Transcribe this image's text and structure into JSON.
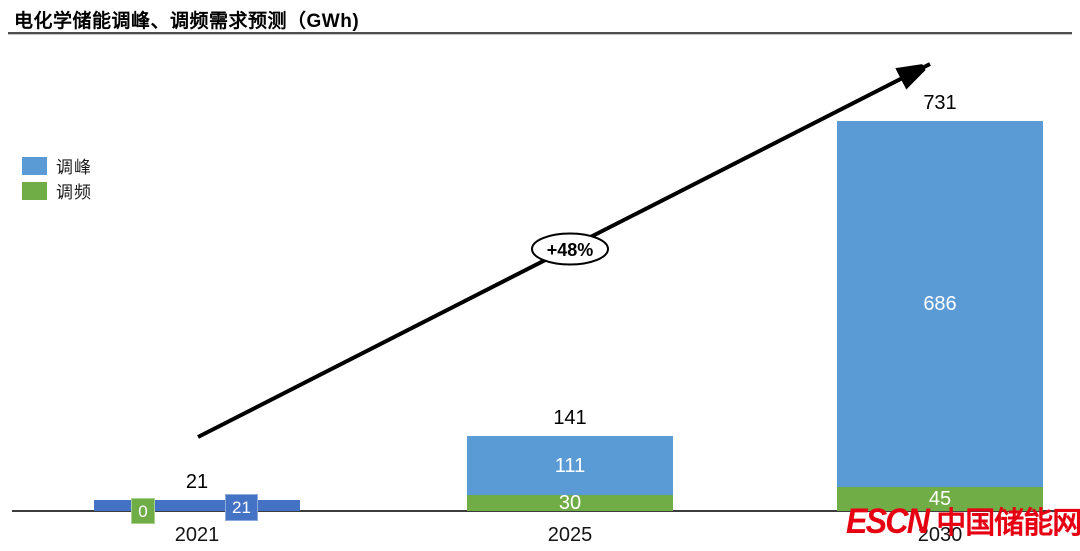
{
  "title": "电化学储能调峰、调频需求预测（GWh)",
  "legend": {
    "items": [
      {
        "label": "调峰",
        "color": "#5b9bd5"
      },
      {
        "label": "调频",
        "color": "#70ad47"
      }
    ]
  },
  "colors": {
    "peak": "#5b9bd5",
    "peak_2021": "#4472c4",
    "freq": "#70ad47",
    "axis": "#3c3c3c",
    "arrow": "#000000",
    "watermark_red": "#e60012"
  },
  "watermark": {
    "latin": "ESCN",
    "cjk": "中国储能网"
  },
  "chart_data": {
    "type": "bar",
    "stacked": true,
    "title": "电化学储能调峰、调频需求预测（GWh)",
    "categories": [
      "2021",
      "2025",
      "2030"
    ],
    "series": [
      {
        "name": "调峰",
        "color": "#5b9bd5",
        "values": [
          21,
          111,
          686
        ]
      },
      {
        "name": "调频",
        "color": "#70ad47",
        "values": [
          0,
          30,
          45
        ]
      }
    ],
    "totals": [
      21,
      141,
      731
    ],
    "annotation": "+48%",
    "annotation_meaning": "growth arrow label on trend line",
    "xlabel": "",
    "ylabel": "",
    "ylim": [
      0,
      731
    ],
    "grid": false,
    "y_axis_visible": false,
    "legend_position": "left middle"
  }
}
